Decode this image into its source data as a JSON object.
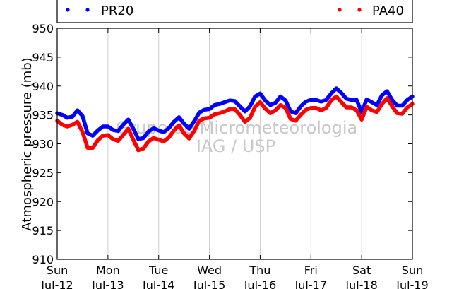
{
  "chart_data": {
    "type": "line",
    "ylabel": "Atmospheric pressure (mb)",
    "xlabel": "",
    "ylim": [
      910,
      950
    ],
    "yticks": [
      910,
      915,
      920,
      925,
      930,
      935,
      940,
      945,
      950
    ],
    "xticks": [
      {
        "day": "Sun",
        "date": "Jul-12"
      },
      {
        "day": "Mon",
        "date": "Jul-13"
      },
      {
        "day": "Tue",
        "date": "Jul-14"
      },
      {
        "day": "Wed",
        "date": "Jul-15"
      },
      {
        "day": "Thu",
        "date": "Jul-16"
      },
      {
        "day": "Fri",
        "date": "Jul-17"
      },
      {
        "day": "Sat",
        "date": "Jul-18"
      },
      {
        "day": "Sun",
        "date": "Jul-19"
      }
    ],
    "grid": "vertical",
    "legend_placement": "top",
    "watermark": [
      "Grupo de Micrometeorologia",
      "IAG / USP"
    ],
    "series": [
      {
        "name": "PR20",
        "color": "#0000ff",
        "x": [
          0,
          0.1,
          0.2,
          0.3,
          0.4,
          0.5,
          0.6,
          0.7,
          0.8,
          0.9,
          1.0,
          1.1,
          1.2,
          1.3,
          1.4,
          1.5,
          1.6,
          1.7,
          1.8,
          1.9,
          2.0,
          2.1,
          2.2,
          2.3,
          2.4,
          2.5,
          2.6,
          2.7,
          2.8,
          2.9,
          3.0,
          3.1,
          3.2,
          3.3,
          3.4,
          3.5,
          3.6,
          3.7,
          3.8,
          3.9,
          4.0,
          4.1,
          4.2,
          4.3,
          4.4,
          4.5,
          4.6,
          4.7,
          4.8,
          4.9,
          5.0,
          5.1,
          5.2,
          5.3,
          5.4,
          5.5,
          5.6,
          5.7,
          5.8,
          5.9,
          6.0,
          6.1,
          6.2,
          6.3,
          6.4,
          6.5,
          6.6,
          6.7,
          6.8,
          6.9,
          7.0
        ],
        "y": [
          935.3,
          935.0,
          934.5,
          934.7,
          935.8,
          934.8,
          931.8,
          931.4,
          932.3,
          933.0,
          933.0,
          932.4,
          932.2,
          933.3,
          934.2,
          932.6,
          930.8,
          931.0,
          932.1,
          932.7,
          932.3,
          932.0,
          932.7,
          933.8,
          934.6,
          933.5,
          932.6,
          933.9,
          935.4,
          935.9,
          936.0,
          936.7,
          936.9,
          937.2,
          937.5,
          937.4,
          936.5,
          935.6,
          936.5,
          938.2,
          938.7,
          937.5,
          936.7,
          937.1,
          938.2,
          937.5,
          935.6,
          935.3,
          936.5,
          937.3,
          937.6,
          937.6,
          937.3,
          937.6,
          938.7,
          939.6,
          938.8,
          937.8,
          937.6,
          937.6,
          935.5,
          937.7,
          937.2,
          936.7,
          938.4,
          939.1,
          937.6,
          936.6,
          936.6,
          937.6,
          938.2
        ]
      },
      {
        "name": "PA40",
        "color": "#ff0000",
        "x": [
          0,
          0.1,
          0.2,
          0.3,
          0.4,
          0.5,
          0.6,
          0.7,
          0.8,
          0.9,
          1.0,
          1.1,
          1.2,
          1.3,
          1.4,
          1.5,
          1.6,
          1.7,
          1.8,
          1.9,
          2.0,
          2.1,
          2.2,
          2.3,
          2.4,
          2.5,
          2.6,
          2.7,
          2.8,
          2.9,
          3.0,
          3.1,
          3.2,
          3.3,
          3.4,
          3.5,
          3.6,
          3.7,
          3.8,
          3.9,
          4.0,
          4.1,
          4.2,
          4.3,
          4.4,
          4.5,
          4.6,
          4.7,
          4.8,
          4.9,
          5.0,
          5.1,
          5.2,
          5.3,
          5.4,
          5.5,
          5.6,
          5.7,
          5.8,
          5.9,
          6.0,
          6.1,
          6.2,
          6.3,
          6.4,
          6.5,
          6.6,
          6.7,
          6.8,
          6.9,
          7.0
        ],
        "y": [
          934.0,
          933.3,
          933.0,
          933.3,
          933.8,
          932.0,
          929.3,
          929.3,
          930.6,
          931.4,
          931.5,
          930.8,
          930.5,
          931.5,
          932.6,
          930.7,
          928.9,
          929.2,
          930.4,
          931.0,
          930.7,
          930.4,
          931.1,
          932.3,
          933.2,
          931.8,
          930.9,
          932.2,
          934.0,
          934.4,
          934.5,
          935.1,
          935.3,
          935.6,
          936.0,
          936.0,
          935.0,
          933.8,
          934.5,
          936.4,
          937.2,
          936.1,
          935.3,
          935.8,
          936.7,
          936.2,
          934.3,
          934.0,
          935.0,
          935.9,
          936.2,
          936.2,
          935.8,
          936.2,
          937.5,
          938.2,
          937.2,
          936.3,
          936.3,
          935.8,
          934.2,
          936.4,
          935.8,
          935.5,
          936.9,
          937.9,
          936.5,
          935.3,
          935.2,
          936.3,
          936.9
        ]
      }
    ]
  }
}
